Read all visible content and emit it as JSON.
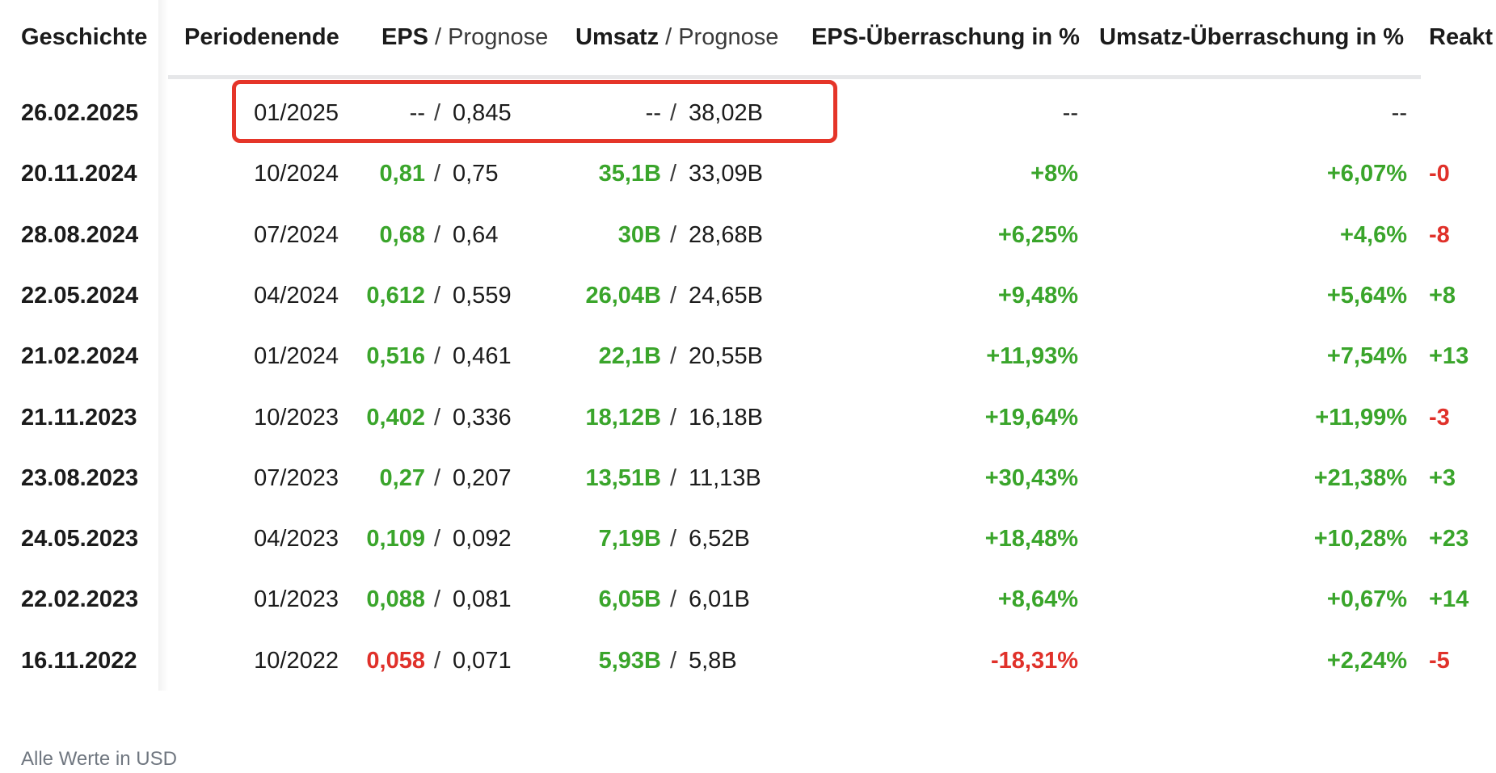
{
  "columns": {
    "history": "Geschichte",
    "period_end": "Periodenende",
    "eps": "EPS",
    "eps_forecast": "Prognose",
    "revenue": "Umsatz",
    "revenue_forecast": "Prognose",
    "separator": "/",
    "eps_surprise": "EPS-Überraschung in %",
    "revenue_surprise": "Umsatz-Überraschung in %",
    "reaction": "Reakt"
  },
  "rows": [
    {
      "date": "26.02.2025",
      "period": "01/2025",
      "eps": "--",
      "eps_forecast": "0,845",
      "revenue": "--",
      "revenue_forecast": "38,02B",
      "eps_surprise": "--",
      "revenue_surprise": "--",
      "reaction": ""
    },
    {
      "date": "20.11.2024",
      "period": "10/2024",
      "eps": "0,81",
      "eps_forecast": "0,75",
      "revenue": "35,1B",
      "revenue_forecast": "33,09B",
      "eps_surprise": "+8%",
      "revenue_surprise": "+6,07%",
      "reaction": "-0"
    },
    {
      "date": "28.08.2024",
      "period": "07/2024",
      "eps": "0,68",
      "eps_forecast": "0,64",
      "revenue": "30B",
      "revenue_forecast": "28,68B",
      "eps_surprise": "+6,25%",
      "revenue_surprise": "+4,6%",
      "reaction": "-8"
    },
    {
      "date": "22.05.2024",
      "period": "04/2024",
      "eps": "0,612",
      "eps_forecast": "0,559",
      "revenue": "26,04B",
      "revenue_forecast": "24,65B",
      "eps_surprise": "+9,48%",
      "revenue_surprise": "+5,64%",
      "reaction": "+8"
    },
    {
      "date": "21.02.2024",
      "period": "01/2024",
      "eps": "0,516",
      "eps_forecast": "0,461",
      "revenue": "22,1B",
      "revenue_forecast": "20,55B",
      "eps_surprise": "+11,93%",
      "revenue_surprise": "+7,54%",
      "reaction": "+13"
    },
    {
      "date": "21.11.2023",
      "period": "10/2023",
      "eps": "0,402",
      "eps_forecast": "0,336",
      "revenue": "18,12B",
      "revenue_forecast": "16,18B",
      "eps_surprise": "+19,64%",
      "revenue_surprise": "+11,99%",
      "reaction": "-3"
    },
    {
      "date": "23.08.2023",
      "period": "07/2023",
      "eps": "0,27",
      "eps_forecast": "0,207",
      "revenue": "13,51B",
      "revenue_forecast": "11,13B",
      "eps_surprise": "+30,43%",
      "revenue_surprise": "+21,38%",
      "reaction": "+3"
    },
    {
      "date": "24.05.2023",
      "period": "04/2023",
      "eps": "0,109",
      "eps_forecast": "0,092",
      "revenue": "7,19B",
      "revenue_forecast": "6,52B",
      "eps_surprise": "+18,48%",
      "revenue_surprise": "+10,28%",
      "reaction": "+23"
    },
    {
      "date": "22.02.2023",
      "period": "01/2023",
      "eps": "0,088",
      "eps_forecast": "0,081",
      "revenue": "6,05B",
      "revenue_forecast": "6,01B",
      "eps_surprise": "+8,64%",
      "revenue_surprise": "+0,67%",
      "reaction": "+14"
    },
    {
      "date": "16.11.2022",
      "period": "10/2022",
      "eps": "0,058",
      "eps_forecast": "0,071",
      "revenue": "5,93B",
      "revenue_forecast": "5,8B",
      "eps_surprise": "-18,31%",
      "revenue_surprise": "+2,24%",
      "reaction": "-5"
    }
  ],
  "footer": {
    "note": "Alle Werte in USD"
  },
  "colors": {
    "positive": "#3aa52b",
    "negative": "#e0312a",
    "highlight": "#e53529"
  }
}
